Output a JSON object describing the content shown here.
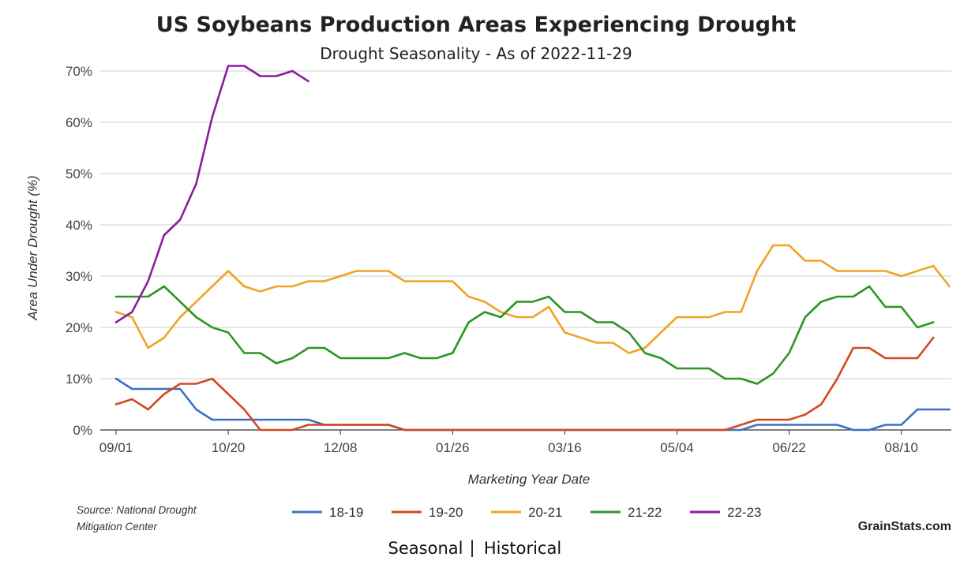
{
  "chart_data": {
    "type": "line",
    "title": "US Soybeans Production Areas Experiencing Drought",
    "subtitle": "Drought Seasonality - As of 2022-11-29",
    "xlabel": "Marketing Year Date",
    "ylabel": "Area Under Drought (%)",
    "ylim": [
      0,
      70
    ],
    "yticks": [
      0,
      10,
      20,
      30,
      40,
      50,
      60,
      70
    ],
    "ytick_labels": [
      "0%",
      "10%",
      "20%",
      "30%",
      "40%",
      "50%",
      "60%",
      "70%"
    ],
    "xtick_labels": [
      "09/01",
      "10/20",
      "12/08",
      "01/26",
      "03/16",
      "05/04",
      "06/22",
      "08/10"
    ],
    "xtick_week_index": [
      0,
      7,
      14,
      21,
      28,
      35,
      42,
      49
    ],
    "num_weeks": 53,
    "grid": true,
    "legend_position": "bottom-center",
    "series": [
      {
        "name": "18-19",
        "color": "#3c6fc5",
        "values": [
          10,
          8,
          8,
          8,
          8,
          4,
          2,
          2,
          2,
          2,
          2,
          2,
          2,
          1,
          1,
          1,
          1,
          1,
          0,
          0,
          0,
          0,
          0,
          0,
          0,
          0,
          0,
          0,
          0,
          0,
          0,
          0,
          0,
          0,
          0,
          0,
          0,
          0,
          0,
          0,
          1,
          1,
          1,
          1,
          1,
          1,
          0,
          0,
          1,
          1,
          4,
          4,
          4
        ]
      },
      {
        "name": "19-20",
        "color": "#d2491f",
        "values": [
          5,
          6,
          4,
          7,
          9,
          9,
          10,
          7,
          4,
          0,
          0,
          0,
          1,
          1,
          1,
          1,
          1,
          1,
          0,
          0,
          0,
          0,
          0,
          0,
          0,
          0,
          0,
          0,
          0,
          0,
          0,
          0,
          0,
          0,
          0,
          0,
          0,
          0,
          0,
          1,
          2,
          2,
          2,
          3,
          5,
          10,
          16,
          16,
          14,
          14,
          14,
          18
        ]
      },
      {
        "name": "20-21",
        "color": "#f0a325",
        "values": [
          23,
          22,
          16,
          18,
          22,
          25,
          28,
          31,
          28,
          27,
          28,
          28,
          29,
          29,
          30,
          31,
          31,
          31,
          29,
          29,
          29,
          29,
          26,
          25,
          23,
          22,
          22,
          24,
          19,
          18,
          17,
          17,
          15,
          16,
          19,
          22,
          22,
          22,
          23,
          23,
          31,
          36,
          36,
          33,
          33,
          31,
          31,
          31,
          31,
          30,
          31,
          32,
          28
        ]
      },
      {
        "name": "21-22",
        "color": "#2a9623",
        "values": [
          26,
          26,
          26,
          28,
          25,
          22,
          20,
          19,
          15,
          15,
          13,
          14,
          16,
          16,
          14,
          14,
          14,
          14,
          15,
          14,
          14,
          15,
          21,
          23,
          22,
          25,
          25,
          26,
          23,
          23,
          21,
          21,
          19,
          15,
          14,
          12,
          12,
          12,
          10,
          10,
          9,
          11,
          15,
          22,
          25,
          26,
          26,
          28,
          24,
          24,
          20,
          21
        ]
      },
      {
        "name": "22-23",
        "color": "#8e1aa0",
        "values": [
          21,
          23,
          29,
          38,
          41,
          48,
          61,
          71,
          71,
          69,
          69,
          70,
          68
        ]
      }
    ],
    "source_line1": "Source: National Drought",
    "source_line2": "Mitigation Center",
    "brand": "GrainStats.com",
    "nav": {
      "seasonal": "Seasonal",
      "separator": "|",
      "historical": "Historical"
    }
  }
}
